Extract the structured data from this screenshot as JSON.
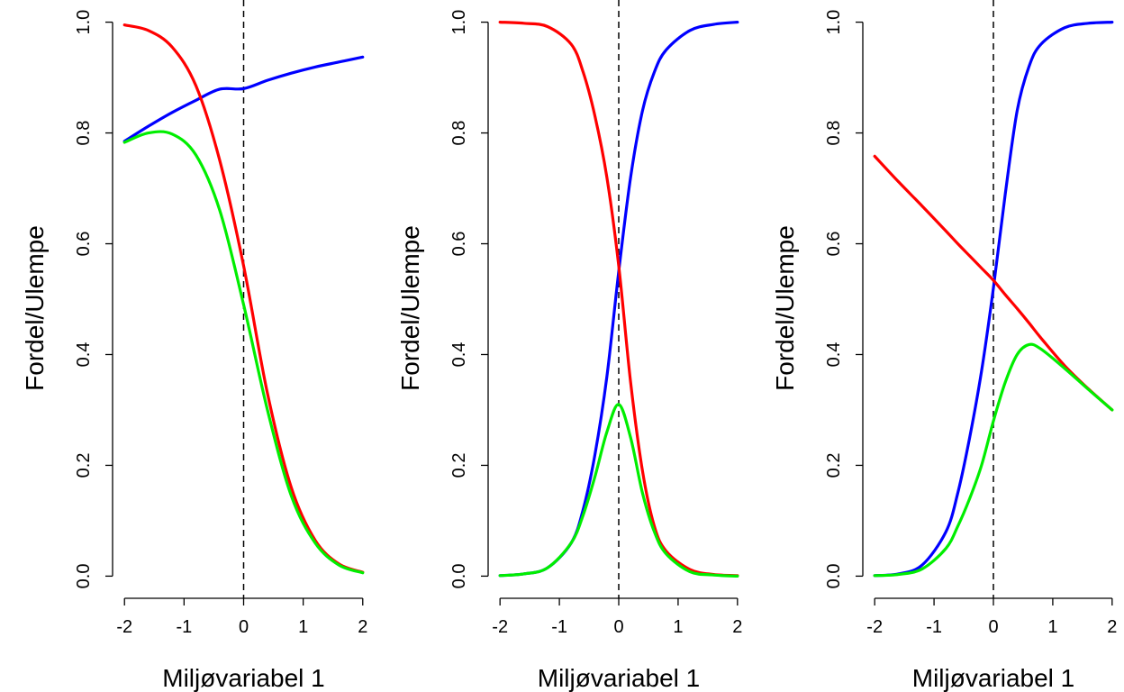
{
  "chart_data": [
    {
      "type": "line",
      "xlabel": "Miljøvariabel 1",
      "ylabel": "Fordel/Ulempe",
      "xlim": [
        -2.2,
        2.2
      ],
      "ylim": [
        -0.04,
        1.04
      ],
      "x_ticks": [
        -2,
        -1,
        0,
        1,
        2
      ],
      "x_tick_labels": [
        "-2",
        "-1",
        "0",
        "1",
        "2"
      ],
      "y_ticks": [
        0,
        0.2,
        0.4,
        0.6,
        0.8,
        1
      ],
      "y_tick_labels": [
        "0.0",
        "0.2",
        "0.4",
        "0.6",
        "0.8",
        "1.0"
      ],
      "vline_x": 0,
      "x": [
        -2,
        -1.6,
        -1.2,
        -0.8,
        -0.4,
        0,
        0.4,
        0.8,
        1.2,
        1.6,
        2
      ],
      "series": [
        {
          "color": "#0000ff",
          "values": [
            0.785,
            0.812,
            0.837,
            0.859,
            0.879,
            0.88,
            0.895,
            0.908,
            0.919,
            0.928,
            0.937
          ]
        },
        {
          "color": "#ff0000",
          "values": [
            0.995,
            0.985,
            0.955,
            0.885,
            0.75,
            0.56,
            0.33,
            0.16,
            0.065,
            0.022,
            0.007
          ]
        },
        {
          "color": "#00ee00",
          "values": [
            0.783,
            0.8,
            0.798,
            0.76,
            0.66,
            0.49,
            0.3,
            0.145,
            0.06,
            0.02,
            0.006
          ]
        }
      ]
    },
    {
      "type": "line",
      "xlabel": "Miljøvariabel 1",
      "ylabel": "Fordel/Ulempe",
      "xlim": [
        -2.2,
        2.2
      ],
      "ylim": [
        -0.04,
        1.04
      ],
      "x_ticks": [
        -2,
        -1,
        0,
        1,
        2
      ],
      "x_tick_labels": [
        "-2",
        "-1",
        "0",
        "1",
        "2"
      ],
      "y_ticks": [
        0,
        0.2,
        0.4,
        0.6,
        0.8,
        1
      ],
      "y_tick_labels": [
        "0.0",
        "0.2",
        "0.4",
        "0.6",
        "0.8",
        "1.0"
      ],
      "vline_x": 0,
      "x": [
        -2,
        -1.6,
        -1.2,
        -0.8,
        -0.6,
        -0.4,
        -0.2,
        0,
        0.2,
        0.4,
        0.6,
        0.8,
        1.2,
        1.6,
        2
      ],
      "series": [
        {
          "color": "#0000ff",
          "values": [
            0.001,
            0.004,
            0.015,
            0.06,
            0.12,
            0.22,
            0.36,
            0.55,
            0.72,
            0.84,
            0.91,
            0.95,
            0.985,
            0.996,
            1.0
          ]
        },
        {
          "color": "#ff0000",
          "values": [
            1.0,
            0.998,
            0.992,
            0.96,
            0.91,
            0.83,
            0.72,
            0.56,
            0.35,
            0.19,
            0.09,
            0.045,
            0.012,
            0.003,
            0.001
          ]
        },
        {
          "color": "#00ee00",
          "values": [
            0.001,
            0.004,
            0.015,
            0.06,
            0.11,
            0.18,
            0.26,
            0.31,
            0.25,
            0.15,
            0.08,
            0.04,
            0.008,
            0.002,
            0.0
          ]
        }
      ]
    },
    {
      "type": "line",
      "xlabel": "Miljøvariabel 1",
      "ylabel": "Fordel/Ulempe",
      "xlim": [
        -2.2,
        2.2
      ],
      "ylim": [
        -0.04,
        1.04
      ],
      "x_ticks": [
        -2,
        -1,
        0,
        1,
        2
      ],
      "x_tick_labels": [
        "-2",
        "-1",
        "0",
        "1",
        "2"
      ],
      "y_ticks": [
        0,
        0.2,
        0.4,
        0.6,
        0.8,
        1
      ],
      "y_tick_labels": [
        "0.0",
        "0.2",
        "0.4",
        "0.6",
        "0.8",
        "1.0"
      ],
      "vline_x": 0,
      "x": [
        -2,
        -1.6,
        -1.2,
        -0.8,
        -0.6,
        -0.4,
        -0.2,
        0,
        0.2,
        0.4,
        0.6,
        0.8,
        1.2,
        1.6,
        2
      ],
      "series": [
        {
          "color": "#0000ff",
          "values": [
            0.001,
            0.004,
            0.02,
            0.08,
            0.15,
            0.25,
            0.37,
            0.52,
            0.69,
            0.84,
            0.92,
            0.96,
            0.99,
            0.998,
            1.0
          ]
        },
        {
          "color": "#ff0000",
          "values": [
            0.758,
            0.712,
            0.668,
            0.623,
            0.6,
            0.578,
            0.556,
            0.534,
            0.508,
            0.483,
            0.457,
            0.43,
            0.38,
            0.338,
            0.3
          ]
        },
        {
          "color": "#00ee00",
          "values": [
            0.001,
            0.003,
            0.013,
            0.05,
            0.09,
            0.14,
            0.2,
            0.28,
            0.35,
            0.4,
            0.418,
            0.41,
            0.375,
            0.337,
            0.3
          ]
        }
      ]
    }
  ]
}
